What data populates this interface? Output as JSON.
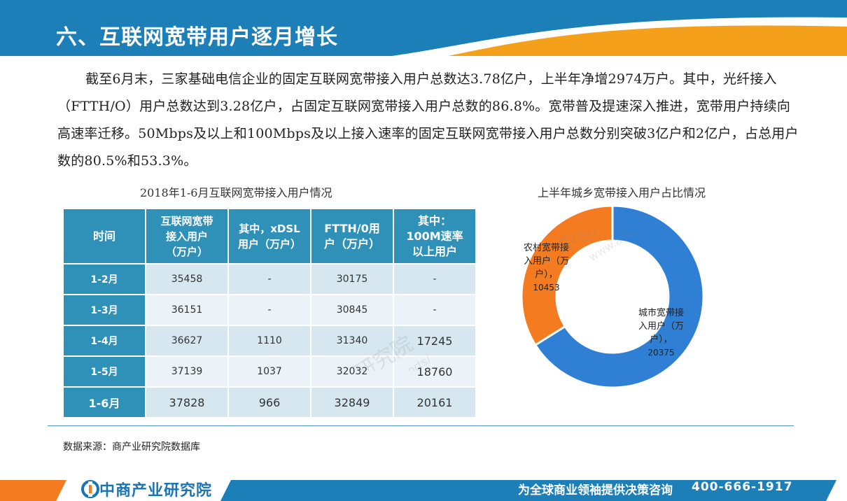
{
  "header": {
    "title": "六、互联网宽带用户逐月增长",
    "colors": {
      "band": "#1c7fb8",
      "accent": "#f5a01a"
    }
  },
  "body_text": "截至6月末，三家基础电信企业的固定互联网宽带接入用户总数达3.78亿户，上半年净增2974万户。其中，光纤接入（FTTH/O）用户总数达到3.28亿户，占固定互联网宽带接入用户总数的86.8%。宽带普及提速深入推进，宽带用户持续向高速率迁移。50Mbps及以上和100Mbps及以上接入速率的固定互联网宽带接入用户总数分别突破3亿户和2亿户，占总用户数的80.5%和53.3%。",
  "table": {
    "caption": "2018年1-6月互联网宽带接入用户情况",
    "headers": {
      "time": "时间",
      "total_l1": "互联网宽带",
      "total_l2": "接入用户",
      "total_l3": "（万户）",
      "xdsl_l1": "其中，xDSL",
      "xdsl_l2": "用户（万户）",
      "ftth_l1": "FTTH/0用",
      "ftth_l2": "户（万户）",
      "m100_l1": "其中：",
      "m100_l2": "100M速率",
      "m100_l3": "以上用户"
    },
    "rows": [
      {
        "period": "1-2月",
        "total": "35458",
        "xdsl": "-",
        "ftth": "30175",
        "m100": "-"
      },
      {
        "period": "1-3月",
        "total": "36151",
        "xdsl": "-",
        "ftth": "30845",
        "m100": "-"
      },
      {
        "period": "1-4月",
        "total": "36627",
        "xdsl": "1110",
        "ftth": "31340",
        "m100": "17245"
      },
      {
        "period": "1-5月",
        "total": "37139",
        "xdsl": "1037",
        "ftth": "32032",
        "m100": "18760"
      },
      {
        "period": "1-6月",
        "total": "37828",
        "xdsl": "966",
        "ftth": "32849",
        "m100": "20161"
      }
    ]
  },
  "chart_data": {
    "type": "pie",
    "title": "上半年城乡宽带接入用户占比情况",
    "slices": [
      {
        "name": "城市宽带接入用户（万户）",
        "value": 20375,
        "color": "#2f7fd4"
      },
      {
        "name": "农村宽带接入用户（万户）",
        "value": 10453,
        "color": "#f47b20"
      }
    ],
    "labels": {
      "urban_l1": "城市宽带接",
      "urban_l2": "入用户（万",
      "urban_l3": "户），",
      "urban_value": "20375",
      "rural_l1": "农村宽带接",
      "rural_l2": "入用户（万",
      "rural_l3": "户），",
      "rural_value": "10453"
    },
    "donut": true
  },
  "source": "数据来源：商产业研究院数据库",
  "footer": {
    "brand": "中商产业研究院",
    "slogan": "为全球商业领袖提供决策咨询",
    "phone": "400-666-1917"
  },
  "watermark": {
    "text": "中商产业研究院",
    "url": "www.askci.com/reports/"
  }
}
